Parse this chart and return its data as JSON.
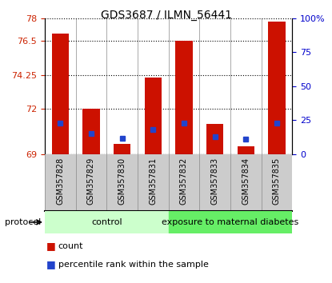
{
  "title": "GDS3687 / ILMN_56441",
  "samples": [
    "GSM357828",
    "GSM357829",
    "GSM357830",
    "GSM357831",
    "GSM357832",
    "GSM357833",
    "GSM357834",
    "GSM357835"
  ],
  "bar_base": 69,
  "bar_tops": [
    77.0,
    72.0,
    69.7,
    74.1,
    76.5,
    71.0,
    69.5,
    77.8
  ],
  "percentile_ranks": [
    23,
    15,
    12,
    18,
    23,
    13,
    11,
    23
  ],
  "ylim_left": [
    69,
    78
  ],
  "ylim_right": [
    0,
    100
  ],
  "yticks_left": [
    69,
    72,
    74.25,
    76.5,
    78
  ],
  "ytick_labels_left": [
    "69",
    "72",
    "74.25",
    "76.5",
    "78"
  ],
  "yticks_right": [
    0,
    25,
    50,
    75,
    100
  ],
  "ytick_labels_right": [
    "0",
    "25",
    "50",
    "75",
    "100%"
  ],
  "bar_color": "#cc1100",
  "marker_color": "#2244cc",
  "control_color": "#ccffcc",
  "exposure_color": "#66ee66",
  "xlabel_color": "#cc2200",
  "ylabel_right_color": "#0000cc",
  "label_bg_color": "#cccccc",
  "protocol_text_color": "#000000"
}
